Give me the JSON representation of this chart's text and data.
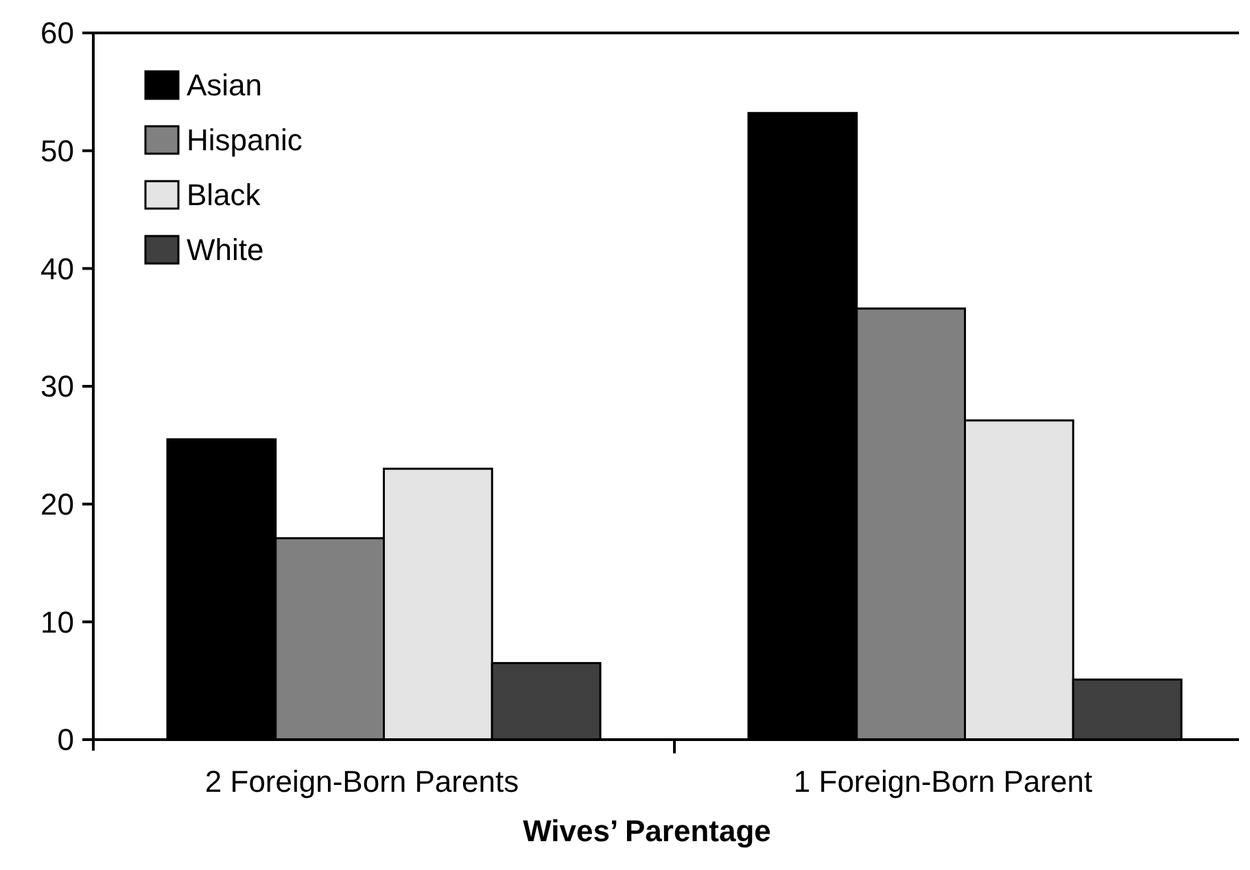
{
  "chart_data": {
    "type": "bar",
    "xlabel": "Wives’ Parentage",
    "categories": [
      "2 Foreign-Born Parents",
      "1 Foreign-Born Parent"
    ],
    "series": [
      {
        "name": "Asian",
        "color": "#000000",
        "values": [
          25.5,
          53.2
        ]
      },
      {
        "name": "Hispanic",
        "color": "#808080",
        "values": [
          17.1,
          36.6
        ]
      },
      {
        "name": "Black",
        "color": "#e4e4e4",
        "values": [
          23.0,
          27.1
        ]
      },
      {
        "name": "White",
        "color": "#404040",
        "values": [
          6.5,
          5.1
        ]
      }
    ],
    "ylim": [
      0,
      60
    ],
    "yticks": [
      0,
      10,
      20,
      30,
      40,
      50,
      60
    ],
    "grid": false,
    "legend": "top left"
  }
}
